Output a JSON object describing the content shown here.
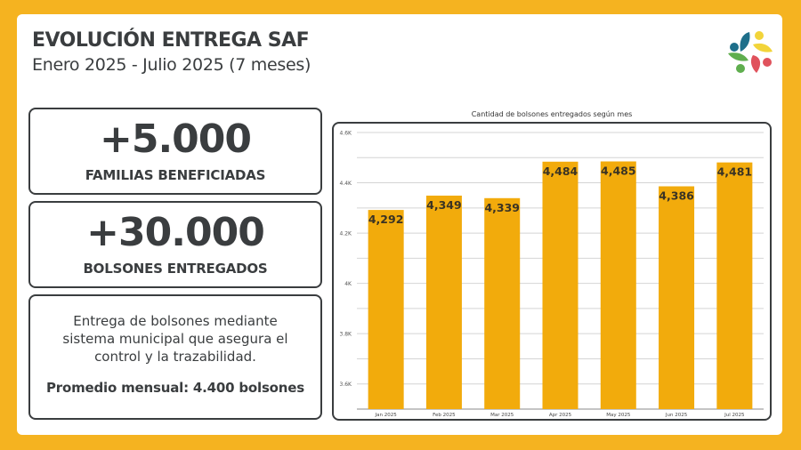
{
  "header": {
    "title": "EVOLUCIÓN ENTREGA SAF",
    "subtitle": "Enero 2025 - Julio 2025 (7 meses)"
  },
  "logo": {
    "icon": "flower-logo-icon",
    "colors": [
      "#1e6f8a",
      "#f2d43a",
      "#5fae4e",
      "#e0525c"
    ]
  },
  "stats": [
    {
      "value": "+5.000",
      "label": "FAMILIAS BENEFICIADAS"
    },
    {
      "value": "+30.000",
      "label": "BOLSONES ENTREGADOS"
    }
  ],
  "info": {
    "description": "Entrega de bolsones mediante sistema municipal que asegura el control y la trazabilidad.",
    "average": "Promedio mensual: 4.400 bolsones"
  },
  "colors": {
    "accent": "#f5b320",
    "bar": "#f2ab0c",
    "text": "#3a3d3f"
  },
  "chart_data": {
    "type": "bar",
    "title": "Cantidad de bolsones entregados según mes",
    "categories": [
      "Jan 2025",
      "Feb 2025",
      "Mar 2025",
      "Apr 2025",
      "May 2025",
      "Jun 2025",
      "Jul 2025"
    ],
    "values": [
      4292,
      4349,
      4339,
      4484,
      4485,
      4386,
      4481
    ],
    "data_labels": [
      "4,292",
      "4,349",
      "4,339",
      "4,484",
      "4,485",
      "4,386",
      "4,481"
    ],
    "ylim": [
      3500,
      4600
    ],
    "yticks": [
      3600,
      3800,
      4000,
      4200,
      4400,
      4600
    ],
    "ytick_labels": [
      "3.6K",
      "3.8K",
      "4K",
      "4.2K",
      "4.4K",
      "4.6K"
    ],
    "minor_grid_step": 100,
    "xlabel": "",
    "ylabel": "",
    "grid": true
  }
}
